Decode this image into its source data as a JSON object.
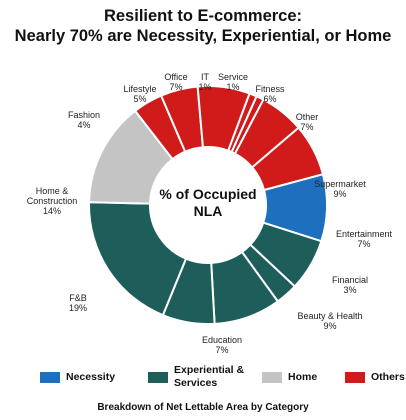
{
  "title_line1": "Resilient to E-commerce:",
  "title_line2": "Nearly 70% are Necessity, Experiential, or Home",
  "chart_data": {
    "type": "pie",
    "donut": true,
    "center_label_line1": "% of Occupied",
    "center_label_line2": "NLA",
    "categories": [
      "Supermarket",
      "Entertainment",
      "Financial",
      "Beauty & Health",
      "Education",
      "F&B",
      "Home & Construction",
      "Fashion",
      "Lifestyle",
      "Office",
      "IT",
      "Service",
      "Fitness",
      "Other"
    ],
    "values": [
      9,
      7,
      3,
      9,
      7,
      19,
      14,
      4,
      5,
      7,
      1,
      1,
      6,
      7
    ],
    "value_labels": [
      "9%",
      "7%",
      "3%",
      "9%",
      "7%",
      "19%",
      "14%",
      "4%",
      "5%",
      "7%",
      "1%",
      "1%",
      "6%",
      "7%"
    ],
    "groups": [
      "Necessity",
      "Experiential & Services",
      "Experiential & Services",
      "Experiential & Services",
      "Experiential & Services",
      "Experiential & Services",
      "Home",
      "Others",
      "Others",
      "Others",
      "Others",
      "Others",
      "Others",
      "Others"
    ],
    "legend": [
      {
        "name": "Necessity",
        "color": "#1f6fbf"
      },
      {
        "name": "Experiential & Services",
        "color": "#1e5e5a"
      },
      {
        "name": "Home",
        "color": "#c4c4c4"
      },
      {
        "name": "Others",
        "color": "#d11a1a"
      }
    ],
    "legend_position": "bottom",
    "footnote": "Breakdown of Net Lettable Area by Category"
  }
}
